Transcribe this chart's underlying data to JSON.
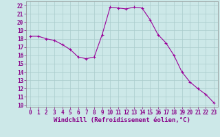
{
  "x": [
    0,
    1,
    2,
    3,
    4,
    5,
    6,
    7,
    8,
    9,
    10,
    11,
    12,
    13,
    14,
    15,
    16,
    17,
    18,
    19,
    20,
    21,
    22,
    23
  ],
  "y": [
    18.3,
    18.3,
    18.0,
    17.8,
    17.3,
    16.7,
    15.8,
    15.6,
    15.8,
    18.5,
    21.8,
    21.7,
    21.6,
    21.8,
    21.7,
    20.3,
    18.5,
    17.5,
    16.0,
    14.0,
    12.8,
    12.0,
    11.3,
    10.3
  ],
  "line_color": "#990099",
  "marker": "+",
  "marker_size": 3,
  "bg_color": "#cce8e8",
  "grid_color": "#aacccc",
  "xlabel": "Windchill (Refroidissement éolien,°C)",
  "xlim": [
    -0.5,
    23.5
  ],
  "ylim": [
    9.8,
    22.5
  ],
  "yticks": [
    10,
    11,
    12,
    13,
    14,
    15,
    16,
    17,
    18,
    19,
    20,
    21,
    22
  ],
  "xticks": [
    0,
    1,
    2,
    3,
    4,
    5,
    6,
    7,
    8,
    9,
    10,
    11,
    12,
    13,
    14,
    15,
    16,
    17,
    18,
    19,
    20,
    21,
    22,
    23
  ],
  "tick_label_size": 5.5,
  "xlabel_size": 6.5,
  "line_width": 0.8,
  "text_color": "#880088"
}
